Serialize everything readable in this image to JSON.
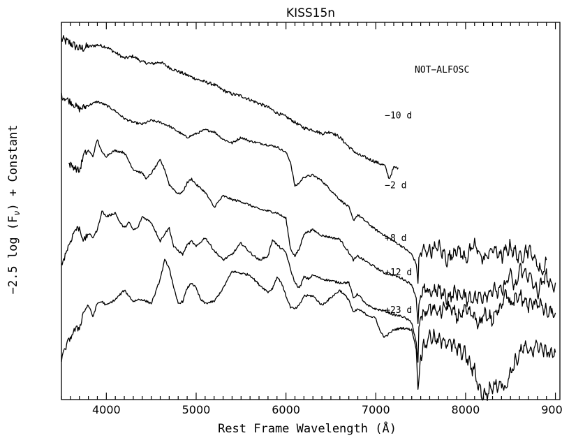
{
  "chart_data": {
    "type": "line",
    "title": "KISS15n",
    "xlabel": "Rest Frame Wavelength (Å)",
    "ylabel": "−2.5 log (F",
    "ylabel_sub": "ν",
    "ylabel_tail": ") + Constant",
    "instrument_label": "NOT−ALFOSC",
    "xlim": [
      3500,
      9050
    ],
    "ylim": [
      0,
      10
    ],
    "grid": false,
    "y_ticks_labeled": false,
    "x_ticks": [
      4000,
      5000,
      6000,
      7000,
      8000,
      9000
    ],
    "x_tick_labels": [
      "4000",
      "5000",
      "6000",
      "7000",
      "8000",
      "9000"
    ],
    "series": [
      {
        "name": "−10 d",
        "x": [
          3500,
          3600,
          3700,
          3800,
          3900,
          4000,
          4100,
          4200,
          4300,
          4400,
          4500,
          4600,
          4700,
          4800,
          4900,
          5000,
          5100,
          5200,
          5300,
          5400,
          5500,
          5600,
          5700,
          5800,
          5900,
          6000,
          6100,
          6200,
          6300,
          6400,
          6500,
          6600,
          6700,
          6800,
          6900,
          7000,
          7100,
          7150,
          7200,
          7250
        ],
        "y": [
          9.55,
          9.45,
          9.3,
          9.35,
          9.4,
          9.35,
          9.2,
          9.05,
          9.1,
          8.95,
          8.9,
          8.95,
          8.8,
          8.7,
          8.6,
          8.5,
          8.42,
          8.35,
          8.2,
          8.1,
          8.05,
          7.95,
          7.85,
          7.75,
          7.6,
          7.5,
          7.35,
          7.2,
          7.15,
          7.05,
          7.1,
          6.95,
          6.7,
          6.5,
          6.4,
          6.3,
          6.2,
          5.85,
          6.15,
          6.15
        ]
      },
      {
        "name": "−2 d",
        "x": [
          3500,
          3600,
          3700,
          3800,
          3900,
          4000,
          4100,
          4200,
          4300,
          4400,
          4500,
          4600,
          4700,
          4800,
          4900,
          5000,
          5100,
          5200,
          5300,
          5400,
          5500,
          5600,
          5700,
          5800,
          5900,
          6000,
          6050,
          6100,
          6150,
          6200,
          6300,
          6400,
          6500,
          6600,
          6700,
          6750,
          6800,
          6900,
          7000,
          7100,
          7200,
          7300,
          7400,
          7450,
          7470,
          7480,
          7500,
          7550,
          7600,
          7700,
          7800,
          7900,
          8000,
          8100,
          8200,
          8300,
          8400,
          8500,
          8600,
          8700,
          8800,
          8850,
          8900
        ],
        "y": [
          8.05,
          7.9,
          7.7,
          7.8,
          7.9,
          7.8,
          7.65,
          7.45,
          7.35,
          7.3,
          7.4,
          7.35,
          7.25,
          7.1,
          6.95,
          7.05,
          7.15,
          7.1,
          6.9,
          6.8,
          6.95,
          6.85,
          6.8,
          6.75,
          6.7,
          6.55,
          6.3,
          5.65,
          5.75,
          5.9,
          5.95,
          5.8,
          5.55,
          5.3,
          5.1,
          4.75,
          4.9,
          4.7,
          4.5,
          4.35,
          4.2,
          4.05,
          3.85,
          3.6,
          3.1,
          3.75,
          3.9,
          3.95,
          3.95,
          4.05,
          3.7,
          4.0,
          3.75,
          4.1,
          3.7,
          4.0,
          3.8,
          4.05,
          3.75,
          4.0,
          3.6,
          3.35,
          3.7
        ]
      },
      {
        "name": "+8 d",
        "x": [
          3580,
          3650,
          3700,
          3750,
          3800,
          3850,
          3900,
          3950,
          4000,
          4050,
          4100,
          4200,
          4300,
          4400,
          4450,
          4500,
          4600,
          4650,
          4700,
          4800,
          4850,
          4900,
          4950,
          5000,
          5100,
          5200,
          5300,
          5400,
          5500,
          5600,
          5700,
          5800,
          5900,
          6000,
          6050,
          6100,
          6150,
          6200,
          6300,
          6400,
          6500,
          6600,
          6700,
          6750,
          6800,
          6900,
          7000,
          7100,
          7200,
          7300,
          7400,
          7450,
          7470,
          7480,
          7500,
          7550,
          7600,
          7700,
          7800,
          7900,
          8000,
          8100,
          8200,
          8300,
          8400,
          8500,
          8550,
          8600,
          8700,
          8800,
          8900,
          8950,
          9000
        ],
        "y": [
          6.25,
          6.15,
          6.05,
          6.5,
          6.6,
          6.45,
          6.9,
          6.55,
          6.45,
          6.55,
          6.6,
          6.55,
          6.1,
          6.0,
          5.85,
          6.0,
          6.35,
          6.1,
          5.7,
          5.45,
          5.5,
          5.75,
          5.85,
          5.7,
          5.5,
          5.1,
          5.4,
          5.3,
          5.25,
          5.15,
          5.05,
          5.0,
          4.95,
          4.8,
          4.0,
          3.8,
          4.0,
          4.4,
          4.5,
          4.35,
          4.3,
          4.25,
          3.9,
          3.7,
          3.8,
          3.65,
          3.5,
          3.35,
          3.3,
          3.2,
          3.05,
          2.7,
          2.0,
          2.5,
          2.75,
          2.9,
          2.85,
          2.9,
          2.7,
          2.85,
          2.7,
          2.7,
          2.75,
          2.9,
          2.85,
          3.35,
          2.9,
          3.45,
          3.3,
          2.85,
          3.3,
          2.95,
          3.1
        ]
      },
      {
        "name": "+12 d",
        "x": [
          3500,
          3550,
          3600,
          3650,
          3700,
          3750,
          3800,
          3850,
          3900,
          3950,
          4000,
          4100,
          4150,
          4200,
          4250,
          4300,
          4350,
          4400,
          4500,
          4600,
          4650,
          4700,
          4750,
          4800,
          4850,
          4900,
          4950,
          5000,
          5100,
          5200,
          5300,
          5400,
          5500,
          5600,
          5700,
          5800,
          5850,
          5900,
          5950,
          6000,
          6050,
          6100,
          6150,
          6200,
          6250,
          6300,
          6400,
          6500,
          6600,
          6700,
          6750,
          6800,
          6900,
          7000,
          7100,
          7200,
          7300,
          7400,
          7450,
          7470,
          7480,
          7500,
          7550,
          7600,
          7700,
          7800,
          7900,
          8000,
          8100,
          8150,
          8200,
          8300,
          8400,
          8450,
          8500,
          8600,
          8700,
          8800,
          8900,
          9000
        ],
        "y": [
          3.55,
          3.9,
          4.2,
          4.5,
          4.55,
          4.2,
          4.4,
          4.3,
          4.5,
          5.0,
          4.85,
          4.95,
          4.7,
          4.55,
          4.7,
          4.5,
          4.55,
          4.85,
          4.7,
          4.2,
          4.4,
          4.55,
          4.05,
          3.95,
          3.85,
          4.1,
          4.2,
          4.05,
          4.3,
          3.95,
          3.7,
          3.85,
          4.15,
          3.9,
          3.7,
          3.8,
          4.25,
          4.1,
          4.0,
          3.9,
          3.45,
          3.1,
          2.95,
          3.25,
          3.2,
          3.3,
          3.2,
          3.15,
          3.1,
          3.1,
          2.7,
          2.8,
          2.5,
          2.4,
          2.35,
          2.25,
          2.2,
          2.05,
          1.5,
          1.0,
          1.9,
          2.2,
          2.3,
          2.45,
          2.3,
          2.5,
          2.2,
          2.35,
          2.2,
          1.9,
          2.3,
          2.1,
          2.55,
          2.9,
          2.5,
          2.75,
          2.5,
          2.6,
          2.3,
          2.3
        ]
      },
      {
        "name": "+23 d",
        "x": [
          3500,
          3550,
          3600,
          3650,
          3700,
          3750,
          3800,
          3850,
          3900,
          3950,
          4000,
          4100,
          4200,
          4250,
          4300,
          4350,
          4400,
          4500,
          4550,
          4600,
          4650,
          4700,
          4750,
          4800,
          4850,
          4900,
          4950,
          5000,
          5050,
          5100,
          5200,
          5300,
          5400,
          5500,
          5600,
          5700,
          5800,
          5850,
          5900,
          5950,
          6000,
          6050,
          6100,
          6150,
          6200,
          6300,
          6400,
          6500,
          6600,
          6700,
          6750,
          6800,
          6900,
          7000,
          7050,
          7100,
          7150,
          7200,
          7300,
          7400,
          7450,
          7470,
          7480,
          7500,
          7550,
          7600,
          7700,
          7800,
          7900,
          8000,
          8050,
          8100,
          8150,
          8200,
          8250,
          8300,
          8400,
          8450,
          8500,
          8600,
          8650,
          8700,
          8800,
          8900,
          9000
        ],
        "y": [
          1.05,
          1.4,
          1.65,
          1.85,
          1.9,
          2.35,
          2.5,
          2.2,
          2.55,
          2.6,
          2.5,
          2.65,
          2.9,
          2.75,
          2.6,
          2.65,
          2.65,
          2.55,
          2.85,
          3.2,
          3.7,
          3.5,
          2.95,
          2.55,
          2.6,
          2.95,
          3.1,
          2.95,
          2.65,
          2.55,
          2.6,
          2.95,
          3.4,
          3.35,
          3.3,
          3.05,
          2.85,
          2.95,
          3.25,
          3.1,
          2.75,
          2.45,
          2.4,
          2.5,
          2.75,
          2.75,
          2.5,
          2.7,
          2.9,
          2.65,
          2.3,
          2.4,
          2.25,
          2.15,
          1.8,
          1.65,
          1.75,
          1.85,
          1.9,
          1.85,
          1.35,
          0.25,
          0.55,
          1.2,
          1.45,
          1.7,
          1.55,
          1.55,
          1.35,
          1.2,
          0.9,
          0.75,
          0.3,
          0.1,
          0.2,
          0.35,
          0.45,
          0.3,
          0.75,
          1.2,
          1.4,
          1.25,
          1.45,
          1.25,
          1.25
        ]
      }
    ],
    "labels": [
      {
        "text": "−10 d",
        "x": 7100,
        "y": 7.45
      },
      {
        "text": "−2 d",
        "x": 7100,
        "y": 5.6
      },
      {
        "text": "+8 d",
        "x": 7100,
        "y": 4.2
      },
      {
        "text": "+12 d",
        "x": 7100,
        "y": 3.3
      },
      {
        "text": "+23 d",
        "x": 7100,
        "y": 2.3
      }
    ]
  }
}
